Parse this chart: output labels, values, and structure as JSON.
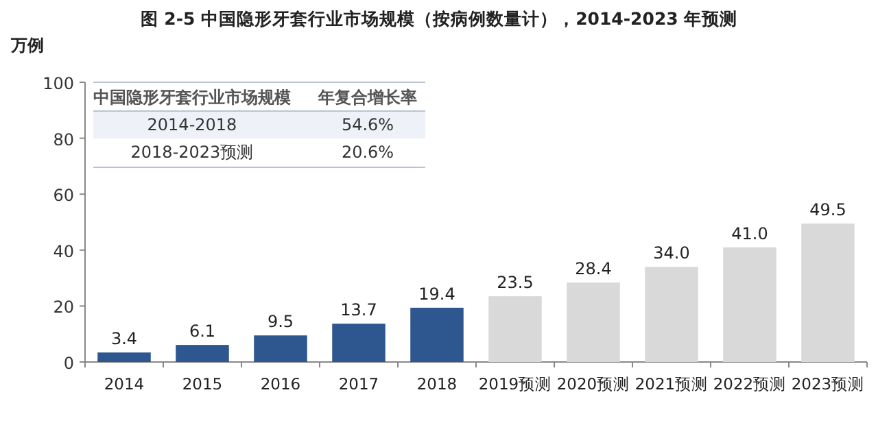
{
  "chart_data": {
    "type": "bar",
    "title": "图 2-5 中国隐形牙套行业市场规模（按病例数量计），2014-2023 年预测",
    "ylabel": "万例",
    "categories": [
      "2014",
      "2015",
      "2016",
      "2017",
      "2018",
      "2019预测",
      "2020预测",
      "2021预测",
      "2022预测",
      "2023预测"
    ],
    "values": [
      3.4,
      6.1,
      9.5,
      13.7,
      19.4,
      23.5,
      28.4,
      34.0,
      41.0,
      49.5
    ],
    "colors": [
      "#2e5790",
      "#2e5790",
      "#2e5790",
      "#2e5790",
      "#2e5790",
      "#d9d9d9",
      "#d9d9d9",
      "#d9d9d9",
      "#d9d9d9",
      "#d9d9d9"
    ],
    "value_labels": [
      "3.4",
      "6.1",
      "9.5",
      "13.7",
      "19.4",
      "23.5",
      "28.4",
      "34.0",
      "41.0",
      "49.5"
    ],
    "ylim": [
      0,
      100
    ],
    "yticks": [
      0,
      20,
      40,
      60,
      80,
      100
    ],
    "grid": false,
    "annotations": [
      "中国隐形牙套行业市场规模",
      "年复合增长率",
      "2014-2018",
      "54.6%",
      "2018-2023预测",
      "20.6%"
    ]
  }
}
